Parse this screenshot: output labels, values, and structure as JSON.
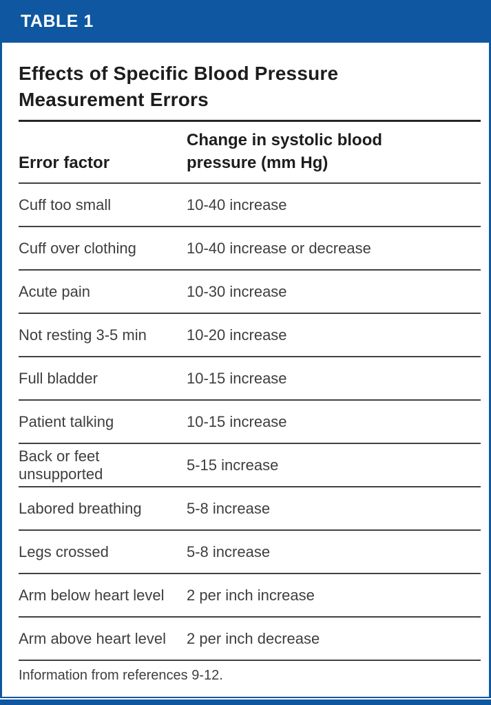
{
  "figure": {
    "table_label": "TABLE 1",
    "title": "Effects of Specific Blood Pressure Measurement Errors",
    "columns": {
      "factor": "Error factor",
      "change": "Change in systolic blood pressure (mm Hg)"
    },
    "rows": [
      {
        "factor": "Cuff too small",
        "change": "10-40 increase"
      },
      {
        "factor": "Cuff over clothing",
        "change": "10-40 increase or decrease"
      },
      {
        "factor": "Acute pain",
        "change": "10-30 increase"
      },
      {
        "factor": "Not resting 3-5 min",
        "change": "10-20 increase"
      },
      {
        "factor": "Full bladder",
        "change": "10-15 increase"
      },
      {
        "factor": "Patient talking",
        "change": "10-15 increase"
      },
      {
        "factor": "Back or feet unsupported",
        "change": "5-15 increase"
      },
      {
        "factor": "Labored breathing",
        "change": "5-8 increase"
      },
      {
        "factor": "Legs crossed",
        "change": "5-8 increase"
      },
      {
        "factor": "Arm below heart level",
        "change": "2 per inch increase"
      },
      {
        "factor": "Arm above heart level",
        "change": "2 per inch decrease"
      }
    ],
    "footnote": "Information from references 9-12.",
    "colors": {
      "accent_blue": "#0f57a0",
      "heading_text": "#1d1d1d",
      "body_text": "#3e3e3e"
    }
  }
}
